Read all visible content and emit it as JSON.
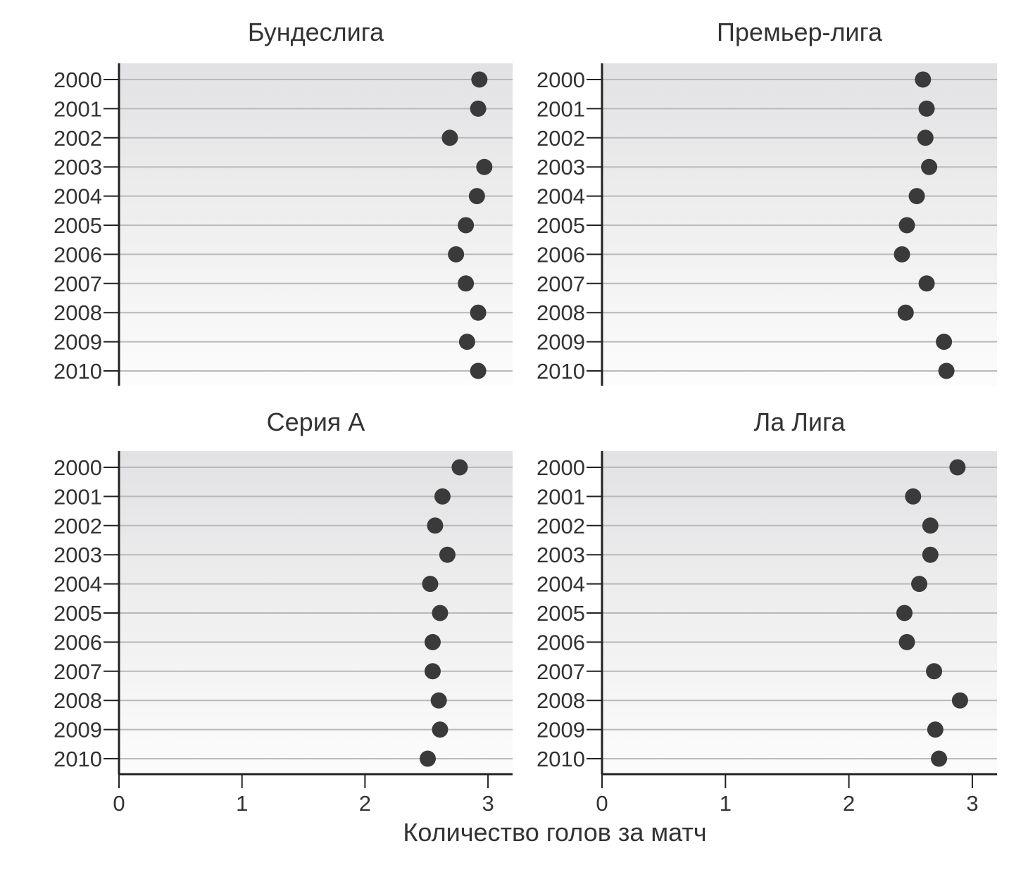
{
  "chart_data": {
    "type": "scatter",
    "layout": "small-multiples 2x2",
    "xlabel": "Количество голов за матч",
    "xlim": [
      0,
      3.2
    ],
    "xticks": [
      "0",
      "1",
      "2",
      "3"
    ],
    "categories": [
      "2000",
      "2001",
      "2002",
      "2003",
      "2004",
      "2005",
      "2006",
      "2007",
      "2008",
      "2009",
      "2010"
    ],
    "grid": true,
    "panels": [
      {
        "title": "Бундеслига",
        "values": [
          2.93,
          2.92,
          2.69,
          2.97,
          2.91,
          2.82,
          2.74,
          2.82,
          2.92,
          2.83,
          2.92
        ]
      },
      {
        "title": "Премьер-лига",
        "values": [
          2.6,
          2.63,
          2.62,
          2.65,
          2.55,
          2.47,
          2.43,
          2.63,
          2.46,
          2.77,
          2.79
        ]
      },
      {
        "title": "Серия А",
        "values": [
          2.77,
          2.63,
          2.57,
          2.67,
          2.53,
          2.61,
          2.55,
          2.55,
          2.6,
          2.61,
          2.51
        ]
      },
      {
        "title": "Ла Лига",
        "values": [
          2.88,
          2.52,
          2.66,
          2.66,
          2.57,
          2.45,
          2.47,
          2.69,
          2.9,
          2.7,
          2.73
        ]
      }
    ],
    "colors": {
      "point": "#3a3a3a",
      "panel_top": "#e2e2e4",
      "panel_bottom": "#fcfcfc",
      "gridline": "#b9b9b9",
      "axis": "#222222",
      "text": "#333333"
    }
  }
}
